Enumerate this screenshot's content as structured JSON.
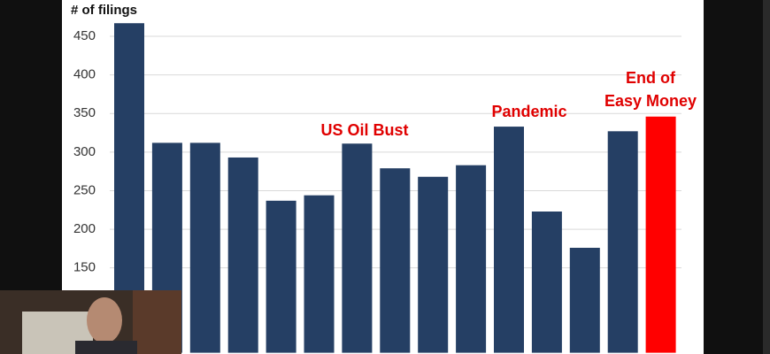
{
  "chart_data": {
    "type": "bar",
    "y_label": "# of filings",
    "categories": [
      null,
      null,
      null,
      null,
      null,
      null,
      null,
      null,
      null,
      null,
      null,
      null,
      null,
      null,
      null
    ],
    "values": [
      467,
      312,
      312,
      293,
      237,
      244,
      311,
      279,
      268,
      283,
      333,
      223,
      176,
      327,
      346
    ],
    "colors": [
      "#253f64",
      "#253f64",
      "#253f64",
      "#253f64",
      "#253f64",
      "#253f64",
      "#253f64",
      "#253f64",
      "#253f64",
      "#253f64",
      "#253f64",
      "#253f64",
      "#253f64",
      "#253f64",
      "#ff0000"
    ],
    "ylim": [
      40,
      470
    ],
    "yticks": [
      150,
      200,
      250,
      300,
      350,
      400,
      450
    ],
    "grid": true,
    "annotations": [
      "US Oil Bust",
      "Pandemic",
      "End of",
      "Easy Money"
    ]
  }
}
